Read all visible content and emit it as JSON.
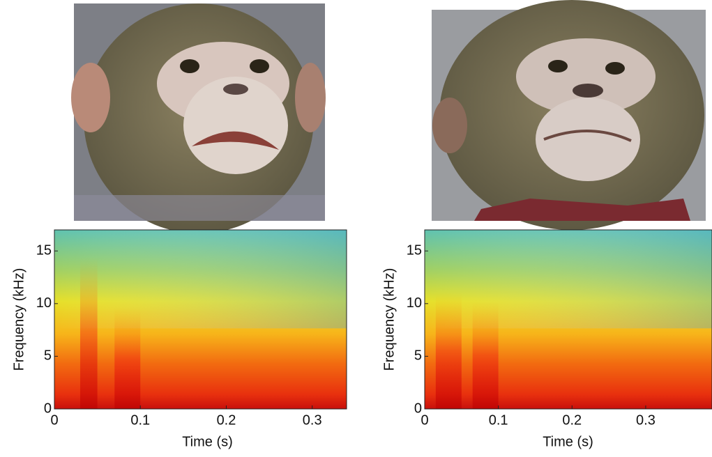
{
  "chart_data": [
    {
      "type": "spectrogram",
      "xlabel": "Time (s)",
      "ylabel": "Frequency (kHz)",
      "xlim": [
        0,
        0.34
      ],
      "ylim": [
        0,
        17
      ],
      "xticks": [
        0,
        0.1,
        0.2,
        0.3
      ],
      "yticks": [
        0,
        5,
        10,
        15
      ]
    },
    {
      "type": "spectrogram",
      "xlabel": "Time (s)",
      "ylabel": "Frequency (kHz)",
      "xlim": [
        0,
        0.39
      ],
      "ylim": [
        0,
        17
      ],
      "xticks": [
        0,
        0.1,
        0.2,
        0.3
      ],
      "yticks": [
        0,
        5,
        10,
        15
      ]
    }
  ]
}
